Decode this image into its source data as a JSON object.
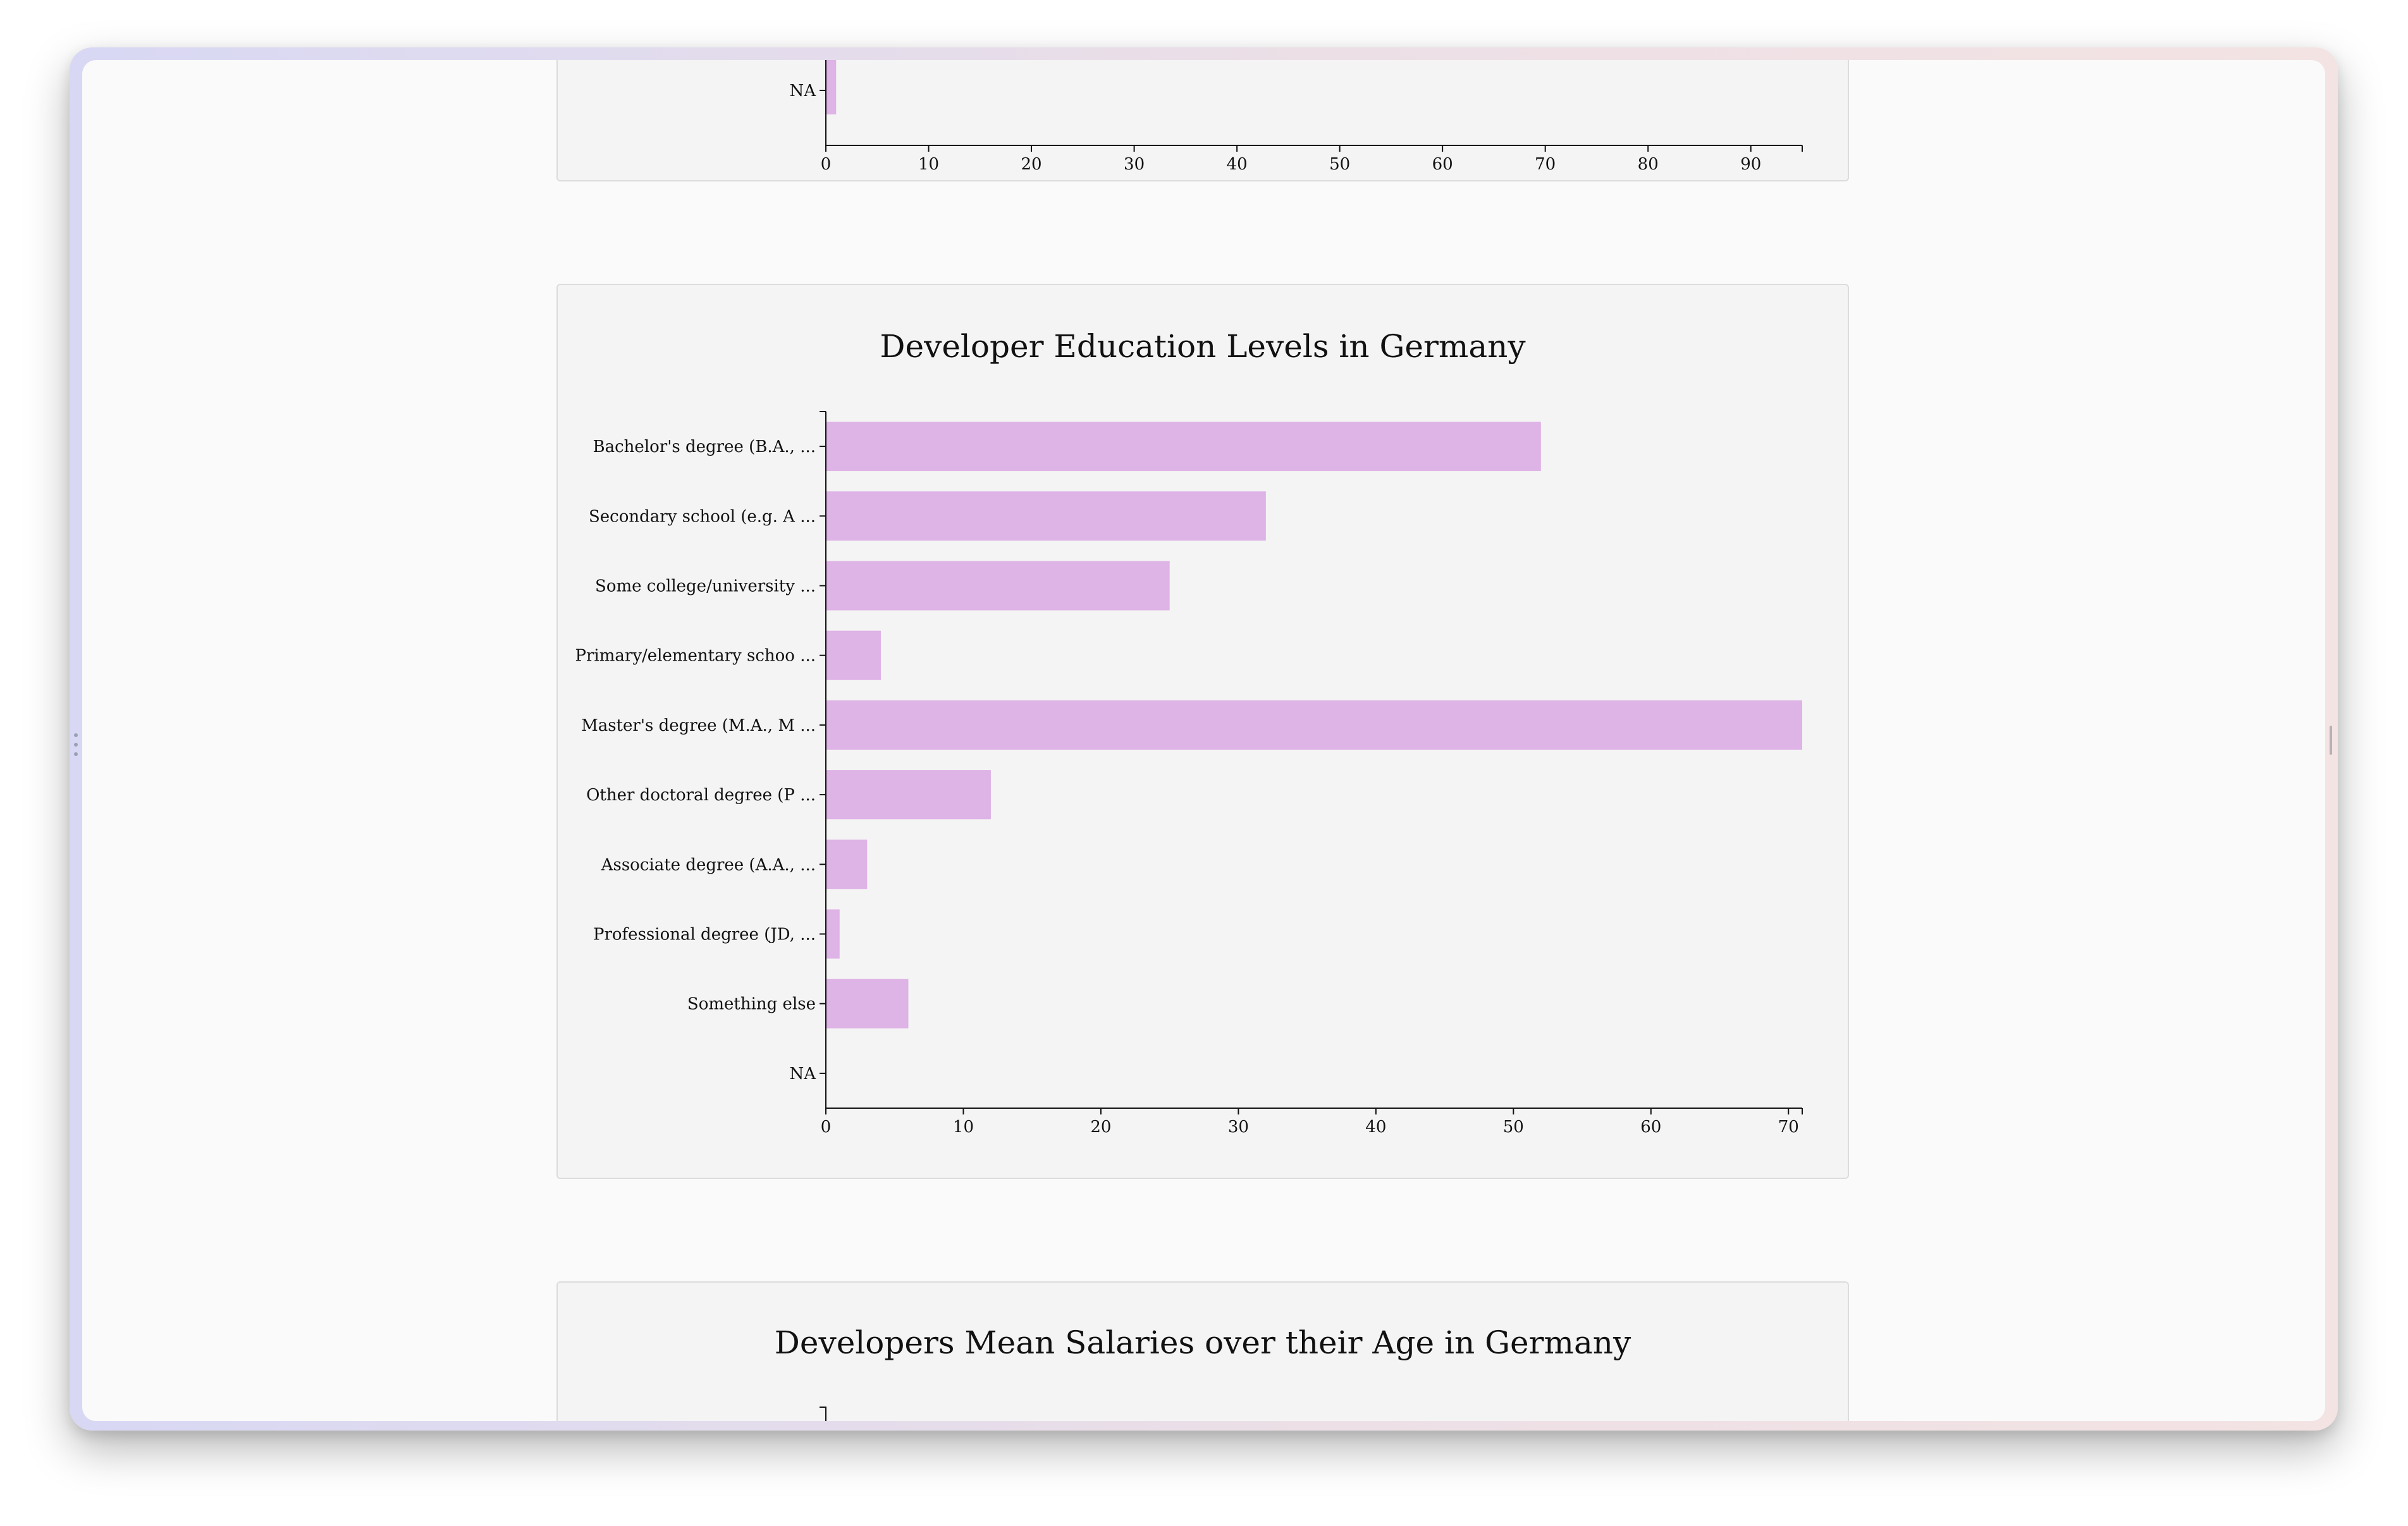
{
  "top_chart": {
    "categories": [
      "NA"
    ],
    "values": [
      1
    ],
    "ticks": [
      "0",
      "10",
      "20",
      "30",
      "40",
      "50",
      "60",
      "70",
      "80",
      "90"
    ],
    "xlim": [
      0,
      95
    ]
  },
  "education_chart": {
    "title": "Developer Education Levels in Germany",
    "chart_data": {
      "type": "bar",
      "orientation": "horizontal",
      "title": "Developer Education Levels in Germany",
      "categories": [
        "Bachelor's degree (B.A., ...",
        "Secondary school (e.g. A ...",
        "Some college/university ...",
        "Primary/elementary schoo ...",
        "Master's degree (M.A., M ...",
        "Other doctoral degree (P ...",
        "Associate degree (A.A., ...",
        "Professional degree (JD, ...",
        "Something else",
        "NA"
      ],
      "values": [
        52,
        32,
        25,
        4,
        71,
        12,
        3,
        1,
        6,
        0
      ],
      "xlim": [
        0,
        71
      ],
      "ticks": [
        "0",
        "10",
        "20",
        "30",
        "40",
        "50",
        "60",
        "70"
      ],
      "bar_color": "#deb3e6",
      "grid": false
    }
  },
  "salary_chart": {
    "title": "Developers Mean Salaries over their Age in Germany"
  },
  "colors": {
    "bar": "#deb3e6",
    "card_bg": "#f4f4f4",
    "page_bg": "#fafafa"
  }
}
